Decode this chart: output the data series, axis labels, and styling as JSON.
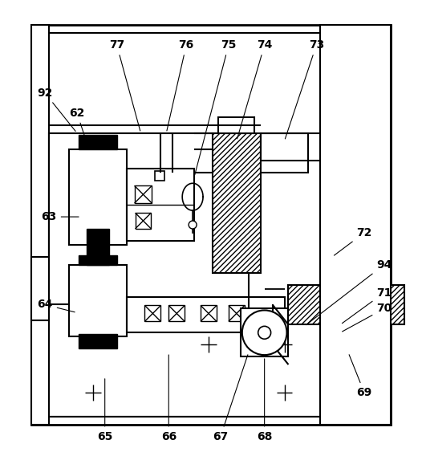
{
  "bg_color": "#ffffff",
  "lc": "#000000",
  "lw": 1.3,
  "fig_w": 5.26,
  "fig_h": 5.63
}
